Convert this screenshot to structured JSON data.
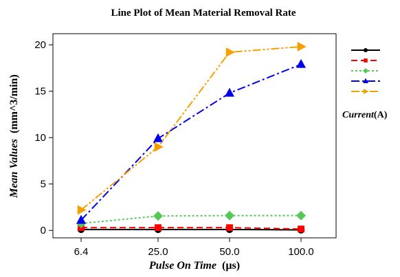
{
  "chart_data": {
    "type": "line",
    "title": "Line Plot of Mean Material Removal Rate",
    "xlabel_italic": "Pulse On Time",
    "xlabel_unit": "(µs)",
    "ylabel_italic": "Mean Values",
    "ylabel_unit": "(mm^3/min)",
    "categories": [
      "6.4",
      "25.0",
      "50.0",
      "100.0"
    ],
    "ylim": [
      -0.8,
      21.2
    ],
    "yticks": [
      0,
      5,
      10,
      15,
      20
    ],
    "grid": false,
    "legend_position": "right",
    "legend_title_italic": "Current",
    "legend_title_unit": "(A)",
    "series": [
      {
        "name": "",
        "color": "#000000",
        "dash": "",
        "marker": "circle",
        "values": [
          0.1,
          0.1,
          0.1,
          0.05
        ]
      },
      {
        "name": "",
        "color": "#ff0000",
        "dash": "9,5",
        "marker": "square",
        "values": [
          0.3,
          0.3,
          0.3,
          0.15
        ]
      },
      {
        "name": "",
        "color": "#55c855",
        "dash": "3,3",
        "marker": "diamond",
        "values": [
          0.75,
          1.55,
          1.6,
          1.6
        ]
      },
      {
        "name": "",
        "color": "#0000ee",
        "dash": "12,4,3,4",
        "marker": "triangle-up",
        "values": [
          1.1,
          9.9,
          14.8,
          17.9
        ]
      },
      {
        "name": "",
        "color": "#f5a000",
        "dash": "12,3,3,3,3,3",
        "marker": "triangle-right",
        "values": [
          2.2,
          9.0,
          19.2,
          19.8
        ]
      }
    ]
  }
}
